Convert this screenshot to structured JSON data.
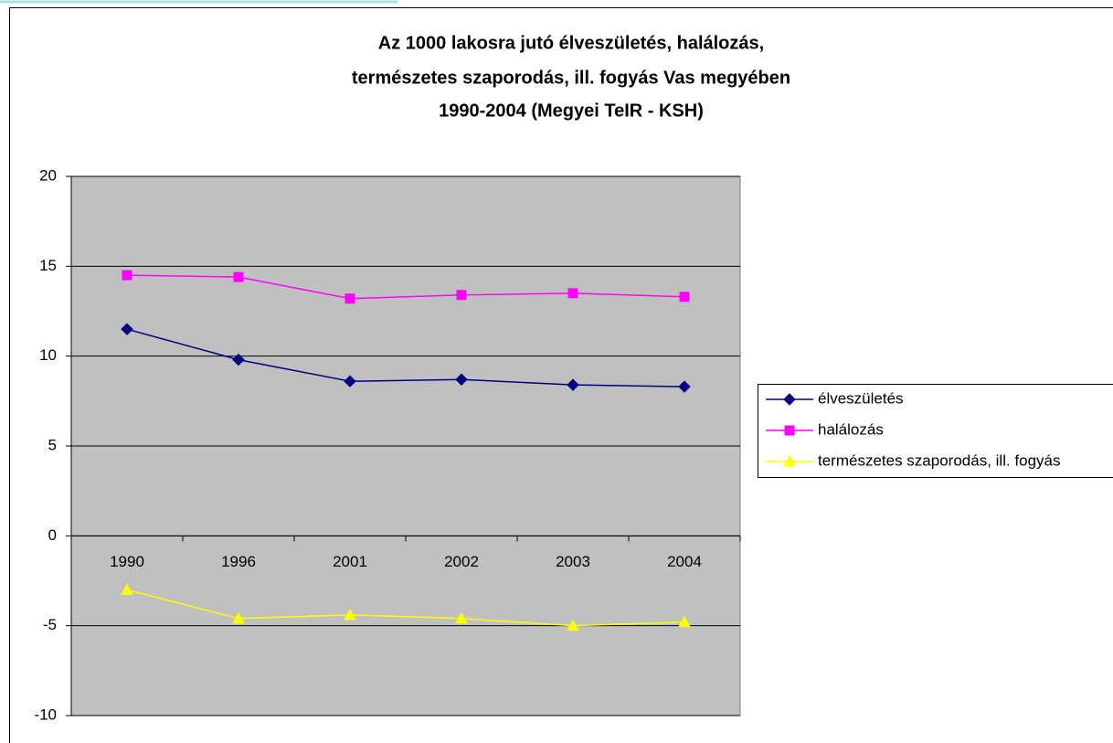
{
  "chart_data": {
    "type": "line",
    "title": [
      "Az 1000 lakosra jutó élveszületés, halálozás,",
      "természetes szaporodás, ill. fogyás Vas megyében",
      "1990-2004 (Megyei TeIR - KSH)"
    ],
    "categories": [
      "1990",
      "1996",
      "2001",
      "2002",
      "2003",
      "2004"
    ],
    "series": [
      {
        "name": "élveszületés",
        "color": "#000080",
        "marker": "diamond",
        "values": [
          11.5,
          9.8,
          8.6,
          8.7,
          8.4,
          8.3
        ]
      },
      {
        "name": "halálozás",
        "color": "#ff00ff",
        "marker": "square",
        "values": [
          14.5,
          14.4,
          13.2,
          13.4,
          13.5,
          13.3
        ]
      },
      {
        "name": "természetes szaporodás, ill. fogyás",
        "color": "#ffff00",
        "marker": "triangle",
        "values": [
          -3.0,
          -4.6,
          -4.4,
          -4.6,
          -5.0,
          -4.8
        ]
      }
    ],
    "ylim": [
      -10,
      20
    ],
    "yticks": [
      -10,
      -5,
      0,
      5,
      10,
      15,
      20
    ],
    "grid": true,
    "legend": "right"
  }
}
